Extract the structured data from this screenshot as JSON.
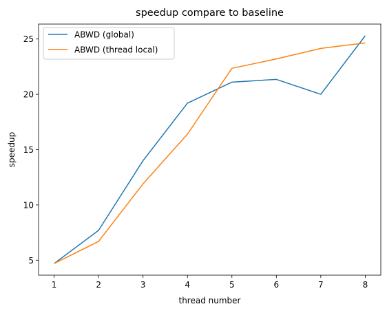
{
  "chart_data": {
    "type": "line",
    "title": "speedup compare to baseline",
    "xlabel": "thread number",
    "ylabel": "speedup",
    "x": [
      1,
      2,
      3,
      4,
      5,
      6,
      7,
      8
    ],
    "xticks": [
      "1",
      "2",
      "3",
      "4",
      "5",
      "6",
      "7",
      "8"
    ],
    "yticks": [
      "5",
      "10",
      "15",
      "20",
      "25"
    ],
    "xlim": [
      0.65,
      8.35
    ],
    "ylim": [
      3.65,
      26.35
    ],
    "grid": false,
    "legend_position": "upper-left",
    "series": [
      {
        "name": "ABWD (global)",
        "color": "#1f77b4",
        "values": [
          4.7,
          7.7,
          14.0,
          19.2,
          21.1,
          21.35,
          20.0,
          25.3
        ]
      },
      {
        "name": "ABWD (thread local)",
        "color": "#ff7f0e",
        "values": [
          4.7,
          6.7,
          11.9,
          16.4,
          22.35,
          23.2,
          24.15,
          24.65
        ]
      }
    ]
  }
}
